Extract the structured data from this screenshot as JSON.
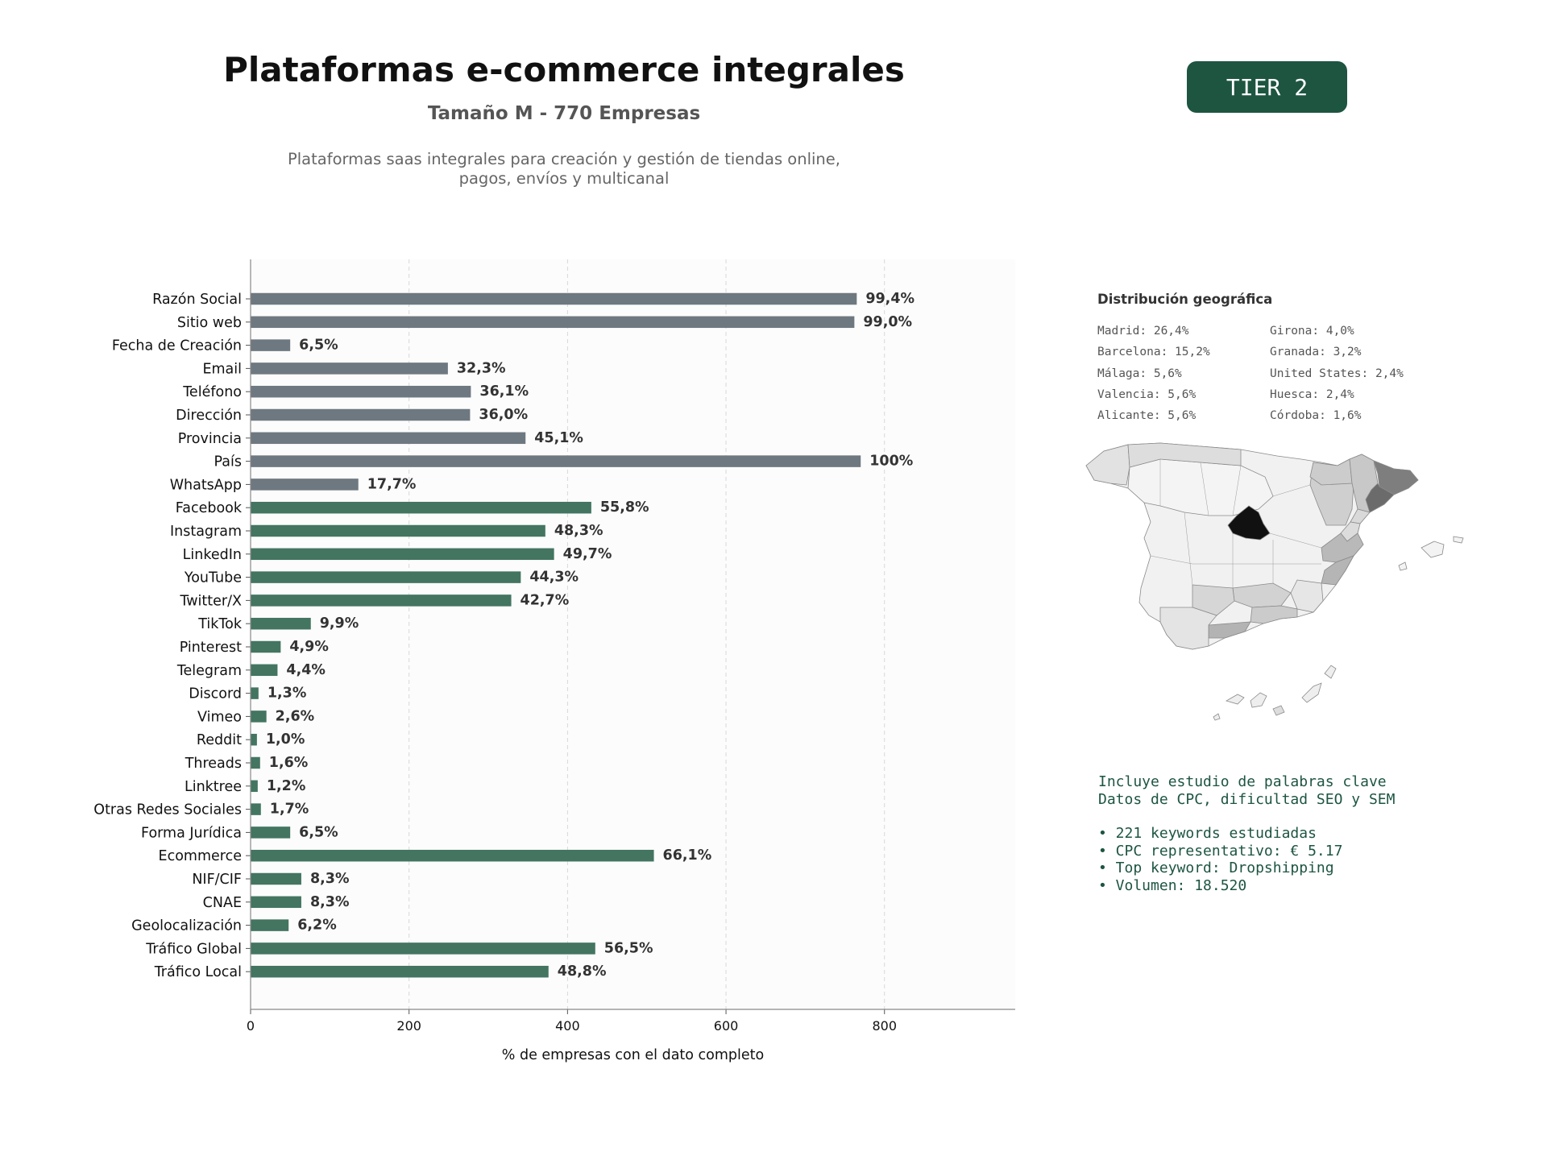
{
  "header": {
    "title": "Plataformas e-commerce integrales",
    "subtitle": "Tamaño M - 770 Empresas",
    "description_line1": "Plataformas saas integrales para creación y gestión de tiendas online,",
    "description_line2": "pagos, envíos y multicanal",
    "tier_badge": "TIER 2"
  },
  "colors": {
    "gray_bar": "#6e7880",
    "green_bar": "#437561",
    "badge": "#1d5541",
    "keyword_text": "#1d5541"
  },
  "chart_data": {
    "type": "bar",
    "orientation": "horizontal",
    "xlabel": "% de empresas con el dato completo",
    "xlim": [
      0,
      965
    ],
    "xticks": [
      0,
      200,
      400,
      600,
      800
    ],
    "grid": "vertical dashed",
    "categories": [
      "Razón Social",
      "Sitio web",
      "Fecha de Creación",
      "Email",
      "Teléfono",
      "Dirección",
      "Provincia",
      "País",
      "WhatsApp",
      "Facebook",
      "Instagram",
      "LinkedIn",
      "YouTube",
      "Twitter/X",
      "TikTok",
      "Pinterest",
      "Telegram",
      "Discord",
      "Vimeo",
      "Reddit",
      "Threads",
      "Linktree",
      "Otras Redes Sociales",
      "Forma Jurídica",
      "Ecommerce",
      "NIF/CIF",
      "CNAE",
      "Geolocalización",
      "Tráfico Global",
      "Tráfico Local"
    ],
    "values": [
      765,
      762,
      50,
      249,
      278,
      277,
      347,
      770,
      136,
      430,
      372,
      383,
      341,
      329,
      76,
      38,
      34,
      10,
      20,
      8,
      12,
      9,
      13,
      50,
      509,
      64,
      64,
      48,
      435,
      376
    ],
    "labels": [
      "99,4%",
      "99,0%",
      "6,5%",
      "32,3%",
      "36,1%",
      "36,0%",
      "45,1%",
      "100%",
      "17,7%",
      "55,8%",
      "48,3%",
      "49,7%",
      "44,3%",
      "42,7%",
      "9,9%",
      "4,9%",
      "4,4%",
      "1,3%",
      "2,6%",
      "1,0%",
      "1,6%",
      "1,2%",
      "1,7%",
      "6,5%",
      "66,1%",
      "8,3%",
      "8,3%",
      "6,2%",
      "56,5%",
      "48,8%"
    ],
    "color_groups": [
      "gray",
      "gray",
      "gray",
      "gray",
      "gray",
      "gray",
      "gray",
      "gray",
      "gray",
      "green",
      "green",
      "green",
      "green",
      "green",
      "green",
      "green",
      "green",
      "green",
      "green",
      "green",
      "green",
      "green",
      "green",
      "green",
      "green",
      "green",
      "green",
      "green",
      "green",
      "green"
    ]
  },
  "geo": {
    "title": "Distribución geográfica",
    "col_0": [
      "Madrid: 26,4%",
      "Barcelona: 15,2%",
      "Málaga: 5,6%",
      "Valencia: 5,6%",
      "Alicante: 5,6%"
    ],
    "col_1": [
      "Girona: 4,0%",
      "Granada: 3,2%",
      "United States: 2,4%",
      "Huesca: 2,4%",
      "Córdoba: 1,6%"
    ]
  },
  "keywords": {
    "line1": "Incluye estudio de palabras clave",
    "line2": "Datos de CPC, dificultad SEO y SEM",
    "bullet1": "• 221 keywords estudiadas",
    "bullet2": "• CPC representativo: € 5.17",
    "bullet3": "• Top keyword: Dropshipping",
    "bullet4": "• Volumen: 18.520"
  }
}
